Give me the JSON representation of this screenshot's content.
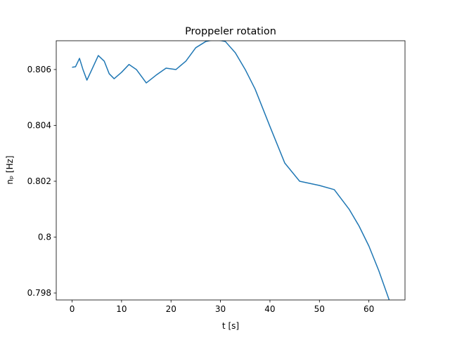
{
  "chart_data": {
    "type": "line",
    "title": "Proppeler rotation",
    "x_label": "t [s]",
    "y_label": "nₚ [Hz]",
    "x": [
      0,
      0.7,
      1.5,
      2.2,
      3,
      4,
      5.3,
      6.5,
      7.5,
      8.5,
      10,
      11.5,
      13,
      15,
      17,
      19,
      21,
      23,
      25,
      27,
      29,
      31,
      33,
      35,
      37,
      40,
      43,
      46,
      50,
      53,
      56,
      58,
      60,
      62,
      64.1
    ],
    "series": [
      {
        "name": "n_p",
        "color": "#1f77b4",
        "values": [
          0.80608,
          0.8061,
          0.8064,
          0.806,
          0.80562,
          0.806,
          0.8065,
          0.8063,
          0.80585,
          0.80567,
          0.8059,
          0.80618,
          0.806,
          0.80552,
          0.8058,
          0.80605,
          0.806,
          0.8063,
          0.80678,
          0.807,
          0.80708,
          0.807,
          0.8066,
          0.806,
          0.8053,
          0.80396,
          0.80265,
          0.802,
          0.80185,
          0.8017,
          0.801,
          0.8004,
          0.79968,
          0.7988,
          0.79775
        ]
      }
    ],
    "xlim": [
      -3.2,
      67.3
    ],
    "ylim": [
      0.79775,
      0.80703
    ],
    "xticks": [
      0,
      10,
      20,
      30,
      40,
      50,
      60
    ],
    "yticks": [
      0.798,
      0.8,
      0.802,
      0.804,
      0.806
    ]
  }
}
